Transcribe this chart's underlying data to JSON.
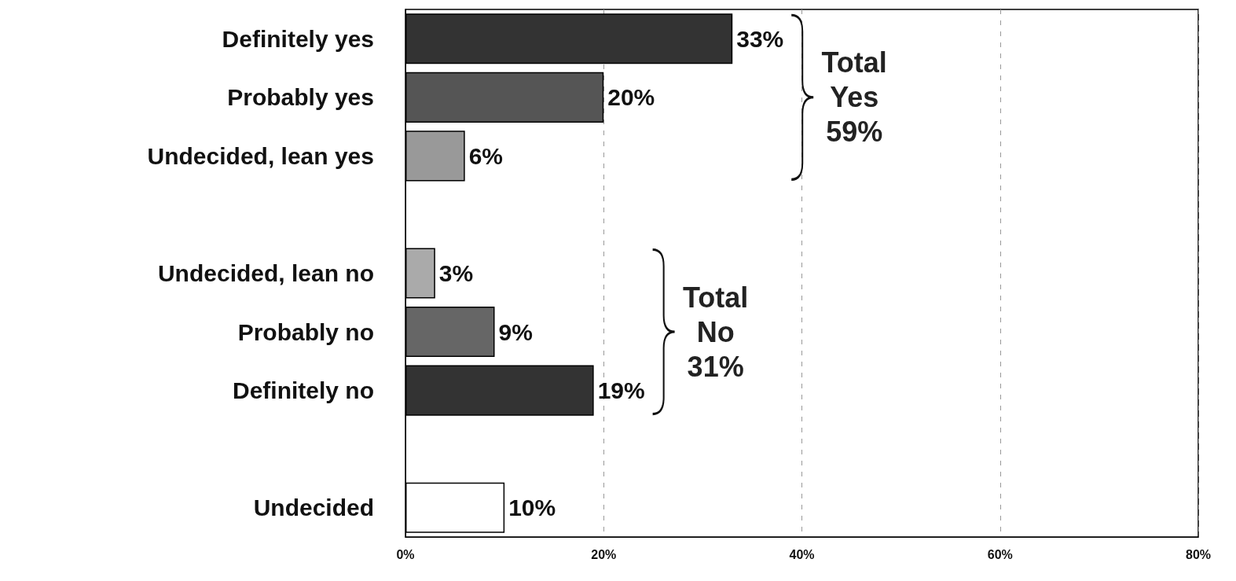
{
  "chart_data": {
    "type": "bar",
    "orientation": "horizontal",
    "categories": [
      "Definitely yes",
      "Probably yes",
      "Undecided, lean yes",
      null,
      "Undecided, lean no",
      "Probably no",
      "Definitely no",
      null,
      "Undecided"
    ],
    "values": [
      33,
      20,
      6,
      null,
      3,
      9,
      19,
      null,
      10
    ],
    "value_labels": [
      "33%",
      "20%",
      "6%",
      null,
      "3%",
      "9%",
      "19%",
      null,
      "10%"
    ],
    "colors": [
      "#333333",
      "#555555",
      "#999999",
      "#ffffff",
      "#aaaaaa",
      "#666666",
      "#333333",
      "#ffffff",
      "#ffffff"
    ],
    "xlim": [
      0,
      80
    ],
    "xticks": [
      {
        "value": 0,
        "label": "0%"
      },
      {
        "value": 20,
        "label": "20%"
      },
      {
        "value": 40,
        "label": "40%"
      },
      {
        "value": 60,
        "label": "60%"
      },
      {
        "value": 80,
        "label": "80%"
      }
    ],
    "grid": "x",
    "annotations": [
      "Total Yes 59%",
      "Total No 31%"
    ]
  }
}
